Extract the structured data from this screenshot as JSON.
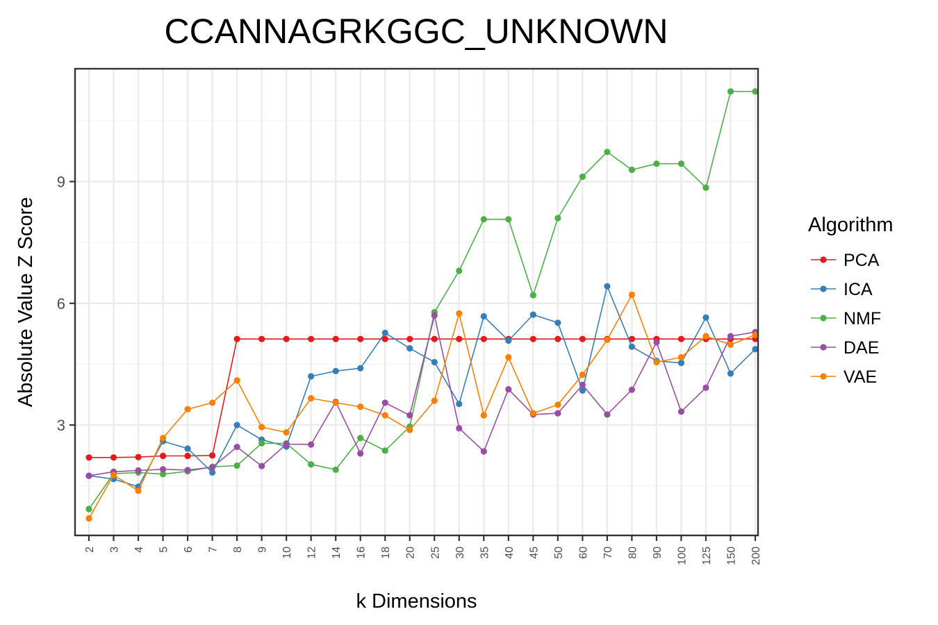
{
  "chart_data": {
    "type": "line",
    "title": "CCANNAGRKGGC_UNKNOWN",
    "xlabel": "k Dimensions",
    "ylabel": "Absolute Value Z Score",
    "x": [
      "2",
      "3",
      "4",
      "5",
      "6",
      "7",
      "8",
      "9",
      "10",
      "12",
      "14",
      "16",
      "18",
      "20",
      "25",
      "30",
      "35",
      "40",
      "45",
      "50",
      "60",
      "70",
      "80",
      "90",
      "100",
      "125",
      "150",
      "200"
    ],
    "ylim": [
      0.28,
      11.78
    ],
    "yticks": [
      3,
      6,
      9
    ],
    "grid": true,
    "legend": {
      "title": "Algorithm",
      "position": "right"
    },
    "series": [
      {
        "name": "PCA",
        "color": "#e41a1c",
        "values": [
          2.2,
          2.2,
          2.21,
          2.24,
          2.24,
          2.25,
          5.12,
          5.12,
          5.12,
          5.12,
          5.12,
          5.12,
          5.12,
          5.12,
          5.12,
          5.12,
          5.12,
          5.12,
          5.12,
          5.12,
          5.12,
          5.12,
          5.12,
          5.12,
          5.12,
          5.12,
          5.12,
          5.12
        ]
      },
      {
        "name": "ICA",
        "color": "#377eb8",
        "values": [
          1.75,
          1.67,
          1.48,
          2.6,
          2.42,
          1.83,
          3.0,
          2.64,
          2.47,
          4.2,
          4.33,
          4.4,
          5.27,
          4.89,
          4.55,
          3.52,
          5.68,
          5.08,
          5.72,
          5.52,
          3.85,
          6.42,
          4.93,
          4.58,
          4.53,
          5.65,
          4.27,
          4.87
        ]
      },
      {
        "name": "NMF",
        "color": "#4daf4a",
        "values": [
          0.93,
          1.8,
          1.83,
          1.79,
          1.86,
          1.97,
          2.0,
          2.55,
          2.55,
          2.03,
          1.9,
          2.68,
          2.37,
          2.96,
          5.78,
          6.8,
          8.07,
          8.07,
          6.2,
          8.1,
          9.12,
          9.73,
          9.29,
          9.44,
          9.44,
          8.85,
          11.22,
          11.22
        ]
      },
      {
        "name": "DAE",
        "color": "#984ea3",
        "values": [
          1.75,
          1.85,
          1.88,
          1.91,
          1.89,
          1.96,
          2.46,
          1.99,
          2.53,
          2.52,
          3.57,
          2.3,
          3.55,
          3.24,
          5.7,
          2.92,
          2.35,
          3.88,
          3.26,
          3.29,
          3.99,
          3.26,
          3.87,
          5.04,
          3.33,
          3.92,
          5.19,
          5.29
        ]
      },
      {
        "name": "VAE",
        "color": "#ff7f00",
        "values": [
          0.7,
          1.77,
          1.38,
          2.68,
          3.39,
          3.55,
          4.1,
          2.95,
          2.82,
          3.66,
          3.55,
          3.45,
          3.24,
          2.88,
          3.6,
          5.75,
          3.24,
          4.67,
          3.29,
          3.5,
          4.24,
          5.1,
          6.21,
          4.55,
          4.67,
          5.19,
          4.98,
          5.22
        ]
      }
    ]
  }
}
